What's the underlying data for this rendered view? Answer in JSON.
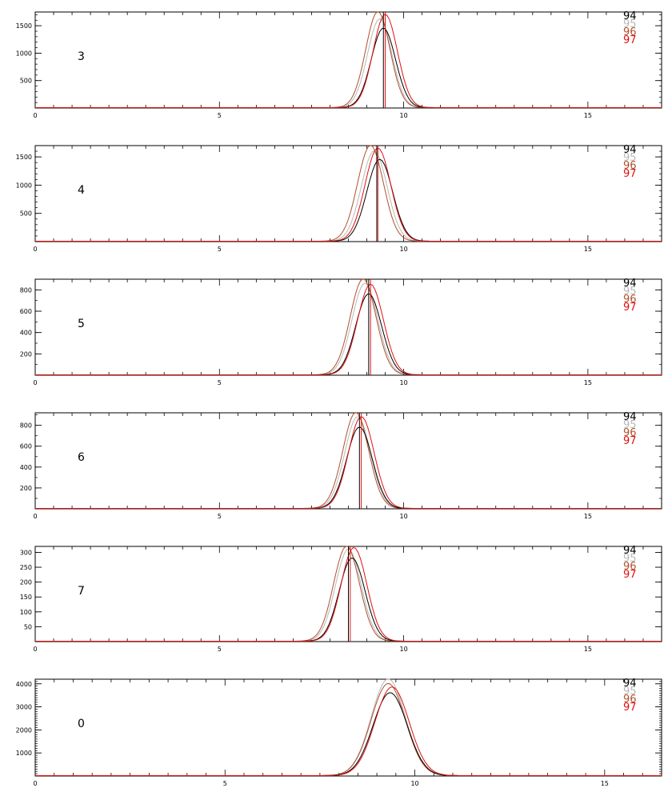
{
  "figure": {
    "legend_labels": [
      "94",
      "95",
      "96",
      "97"
    ]
  },
  "series_colors": {
    "94": "#000000",
    "95": "#b8b8b8",
    "96": "#b0502c",
    "97": "#e01010"
  },
  "chart_data": [
    {
      "type": "line",
      "panel_label": "3",
      "xlim": [
        0,
        17
      ],
      "ylim": [
        0,
        1750
      ],
      "x_ticks": [
        0,
        5,
        10,
        15
      ],
      "y_ticks": [
        500,
        1000,
        1500
      ],
      "legend": [
        "94",
        "95",
        "96",
        "97"
      ],
      "grid": false,
      "series": [
        {
          "name": "94",
          "peak_x": 9.45,
          "peak_y": 1450,
          "width": 0.33
        },
        {
          "name": "95",
          "peak_x": 9.35,
          "peak_y": 1620,
          "width": 0.33
        },
        {
          "name": "96",
          "peak_x": 9.3,
          "peak_y": 1750,
          "width": 0.33
        },
        {
          "name": "97",
          "peak_x": 9.5,
          "peak_y": 1700,
          "width": 0.33
        }
      ],
      "vlines": [
        {
          "x": 9.45,
          "color": "#000000"
        },
        {
          "x": 9.5,
          "color": "#e01010"
        }
      ]
    },
    {
      "type": "line",
      "panel_label": "4",
      "xlim": [
        0,
        17
      ],
      "ylim": [
        0,
        1700
      ],
      "x_ticks": [
        0,
        5,
        10,
        15
      ],
      "y_ticks": [
        500,
        1000,
        1500
      ],
      "legend": [
        "94",
        "95",
        "96",
        "97"
      ],
      "grid": false,
      "series": [
        {
          "name": "94",
          "peak_x": 9.35,
          "peak_y": 1450,
          "width": 0.35
        },
        {
          "name": "95",
          "peak_x": 9.2,
          "peak_y": 1600,
          "width": 0.35
        },
        {
          "name": "96",
          "peak_x": 9.1,
          "peak_y": 1700,
          "width": 0.35
        },
        {
          "name": "97",
          "peak_x": 9.3,
          "peak_y": 1650,
          "width": 0.35
        }
      ],
      "vlines": [
        {
          "x": 9.27,
          "color": "#000000"
        },
        {
          "x": 9.3,
          "color": "#e01010"
        }
      ]
    },
    {
      "type": "line",
      "panel_label": "5",
      "xlim": [
        0,
        17
      ],
      "ylim": [
        0,
        900
      ],
      "x_ticks": [
        0,
        5,
        10,
        15
      ],
      "y_ticks": [
        200,
        400,
        600,
        800
      ],
      "legend": [
        "94",
        "95",
        "96",
        "97"
      ],
      "grid": false,
      "series": [
        {
          "name": "94",
          "peak_x": 9.05,
          "peak_y": 760,
          "width": 0.35
        },
        {
          "name": "95",
          "peak_x": 8.95,
          "peak_y": 860,
          "width": 0.35
        },
        {
          "name": "96",
          "peak_x": 8.9,
          "peak_y": 900,
          "width": 0.35
        },
        {
          "name": "97",
          "peak_x": 9.1,
          "peak_y": 850,
          "width": 0.35
        }
      ],
      "vlines": [
        {
          "x": 9.05,
          "color": "#000000"
        },
        {
          "x": 9.1,
          "color": "#e01010"
        }
      ]
    },
    {
      "type": "line",
      "panel_label": "6",
      "xlim": [
        0,
        17
      ],
      "ylim": [
        0,
        920
      ],
      "x_ticks": [
        0,
        5,
        10,
        15
      ],
      "y_ticks": [
        200,
        400,
        600,
        800
      ],
      "legend": [
        "94",
        "95",
        "96",
        "97"
      ],
      "grid": false,
      "series": [
        {
          "name": "94",
          "peak_x": 8.8,
          "peak_y": 780,
          "width": 0.35
        },
        {
          "name": "95",
          "peak_x": 8.75,
          "peak_y": 880,
          "width": 0.35
        },
        {
          "name": "96",
          "peak_x": 8.7,
          "peak_y": 920,
          "width": 0.35
        },
        {
          "name": "97",
          "peak_x": 8.85,
          "peak_y": 880,
          "width": 0.35
        }
      ],
      "vlines": [
        {
          "x": 8.8,
          "color": "#000000"
        },
        {
          "x": 8.85,
          "color": "#e01010"
        }
      ]
    },
    {
      "type": "line",
      "panel_label": "7",
      "xlim": [
        0,
        17
      ],
      "ylim": [
        0,
        320
      ],
      "x_ticks": [
        0,
        5,
        10,
        15
      ],
      "y_ticks": [
        50,
        100,
        150,
        200,
        250,
        300
      ],
      "legend": [
        "94",
        "95",
        "96",
        "97"
      ],
      "grid": false,
      "series": [
        {
          "name": "94",
          "peak_x": 8.6,
          "peak_y": 280,
          "width": 0.35
        },
        {
          "name": "95",
          "peak_x": 8.5,
          "peak_y": 310,
          "width": 0.35
        },
        {
          "name": "96",
          "peak_x": 8.45,
          "peak_y": 320,
          "width": 0.35
        },
        {
          "name": "97",
          "peak_x": 8.65,
          "peak_y": 315,
          "width": 0.35
        }
      ],
      "vlines": [
        {
          "x": 8.5,
          "color": "#000000"
        },
        {
          "x": 8.55,
          "color": "#e01010"
        }
      ]
    },
    {
      "type": "line",
      "panel_label": "0",
      "xlim": [
        0,
        16.5
      ],
      "ylim": [
        0,
        4200
      ],
      "x_ticks": [
        0,
        5,
        10,
        15
      ],
      "y_ticks": [
        1000,
        2000,
        3000,
        4000
      ],
      "legend": [
        "94",
        "95",
        "96",
        "97"
      ],
      "grid": false,
      "series": [
        {
          "name": "94",
          "peak_x": 9.35,
          "peak_y": 3600,
          "width": 0.45
        },
        {
          "name": "95",
          "peak_x": 9.3,
          "peak_y": 4200,
          "width": 0.45
        },
        {
          "name": "96",
          "peak_x": 9.3,
          "peak_y": 4000,
          "width": 0.45
        },
        {
          "name": "97",
          "peak_x": 9.4,
          "peak_y": 3850,
          "width": 0.45
        }
      ],
      "vlines": []
    }
  ]
}
